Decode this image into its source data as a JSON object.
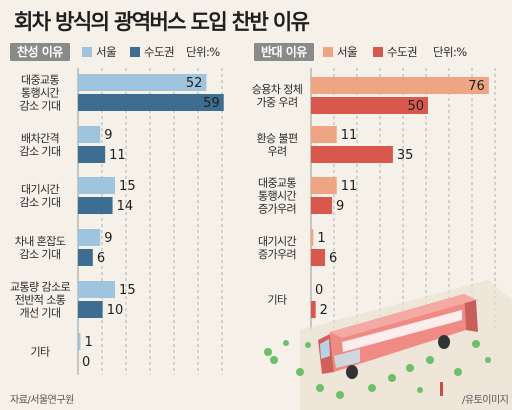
{
  "title": "회차 방식의 광역버스 도입 찬반 이유",
  "source": "자료/서울연구원",
  "credit": "/유토이미지",
  "colors": {
    "favor_seoul": "#9fc4de",
    "favor_metro": "#3d6e91",
    "oppose_seoul": "#eda584",
    "oppose_metro": "#d9584e",
    "grid": "#7a8ea2"
  },
  "chart_data": [
    {
      "type": "bar",
      "panel": "favor",
      "title": "찬성 이유",
      "unit_note": "단위:%",
      "series_names": [
        "서울",
        "수도권"
      ],
      "categories": [
        [
          "대중교통",
          "통행시간",
          "감소 기대"
        ],
        [
          "배차간격",
          "감소 기대"
        ],
        [
          "대기시간",
          "감소 기대"
        ],
        [
          "차내 혼잡도",
          "감소 기대"
        ],
        [
          "교통량 감소로",
          "전반적 소통",
          "개선 기대"
        ],
        [
          "기타"
        ]
      ],
      "values_seoul": [
        52,
        9,
        15,
        9,
        15,
        1
      ],
      "values_metro": [
        59,
        11,
        14,
        6,
        10,
        0
      ],
      "xlim": [
        0,
        60
      ],
      "grid": true
    },
    {
      "type": "bar",
      "panel": "oppose",
      "title": "반대 이유",
      "unit_note": "단위:%",
      "series_names": [
        "서울",
        "수도권"
      ],
      "categories": [
        [
          "승용차 정체",
          "가중 우려"
        ],
        [
          "환승 불편",
          "우려"
        ],
        [
          "대중교통",
          "통행시간",
          "증가우려"
        ],
        [
          "대기시간",
          "증가우려"
        ],
        [
          "기타"
        ]
      ],
      "values_seoul": [
        76,
        11,
        11,
        1,
        0
      ],
      "values_metro": [
        50,
        35,
        9,
        6,
        2
      ],
      "xlim": [
        0,
        80
      ],
      "grid": true
    }
  ]
}
